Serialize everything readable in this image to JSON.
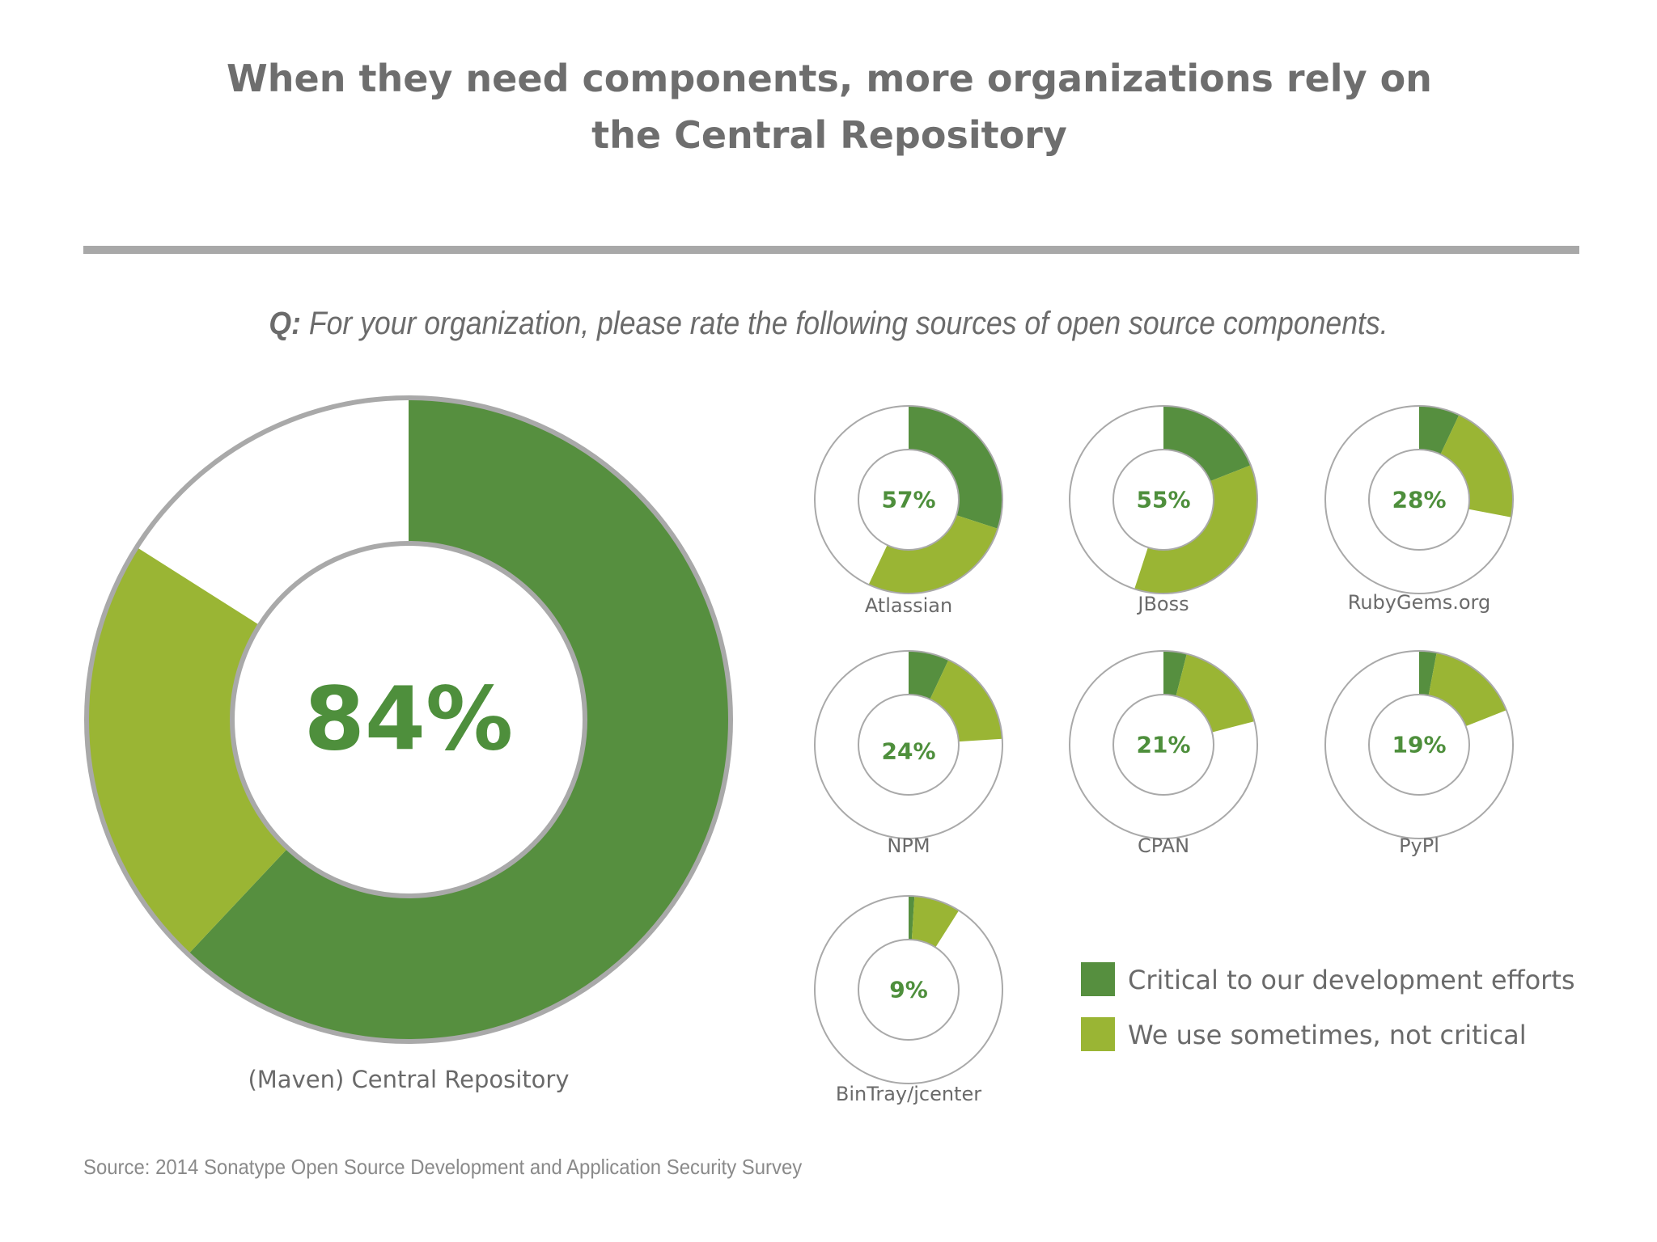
{
  "title_lines": [
    "When they need components, more organizations rely on",
    "the Central Repository"
  ],
  "question": {
    "prefix": "Q:",
    "text": "For your organization, please rate the following sources of open source components."
  },
  "source": "Source: 2014 Sonatype Open Source Development and Application Security Survey",
  "colors": {
    "critical": "#568f3f",
    "sometimes": "#9ab534",
    "percent_text": "#4e8f3c",
    "outline": "#a9a9a9"
  },
  "chart_data": {
    "type": "pie",
    "variant": "donut",
    "series_legend": [
      {
        "key": "critical",
        "label": "Critical to our development efforts"
      },
      {
        "key": "sometimes",
        "label": "We use sometimes, not critical"
      }
    ],
    "items": [
      {
        "name": "(Maven) Central Repository",
        "total_label": "84%",
        "critical": 62,
        "sometimes": 22
      },
      {
        "name": "Atlassian",
        "total_label": "57%",
        "critical": 30,
        "sometimes": 27
      },
      {
        "name": "JBoss",
        "total_label": "55%",
        "critical": 19,
        "sometimes": 36
      },
      {
        "name": "RubyGems.org",
        "total_label": "28%",
        "critical": 7,
        "sometimes": 21
      },
      {
        "name": "NPM",
        "total_label": "24%",
        "critical": 7,
        "sometimes": 17
      },
      {
        "name": "CPAN",
        "total_label": "21%",
        "critical": 4,
        "sometimes": 17
      },
      {
        "name": "PyPl",
        "total_label": "19%",
        "critical": 3,
        "sometimes": 16
      },
      {
        "name": "BinTray/jcenter",
        "total_label": "9%",
        "critical": 1,
        "sometimes": 8
      }
    ]
  }
}
